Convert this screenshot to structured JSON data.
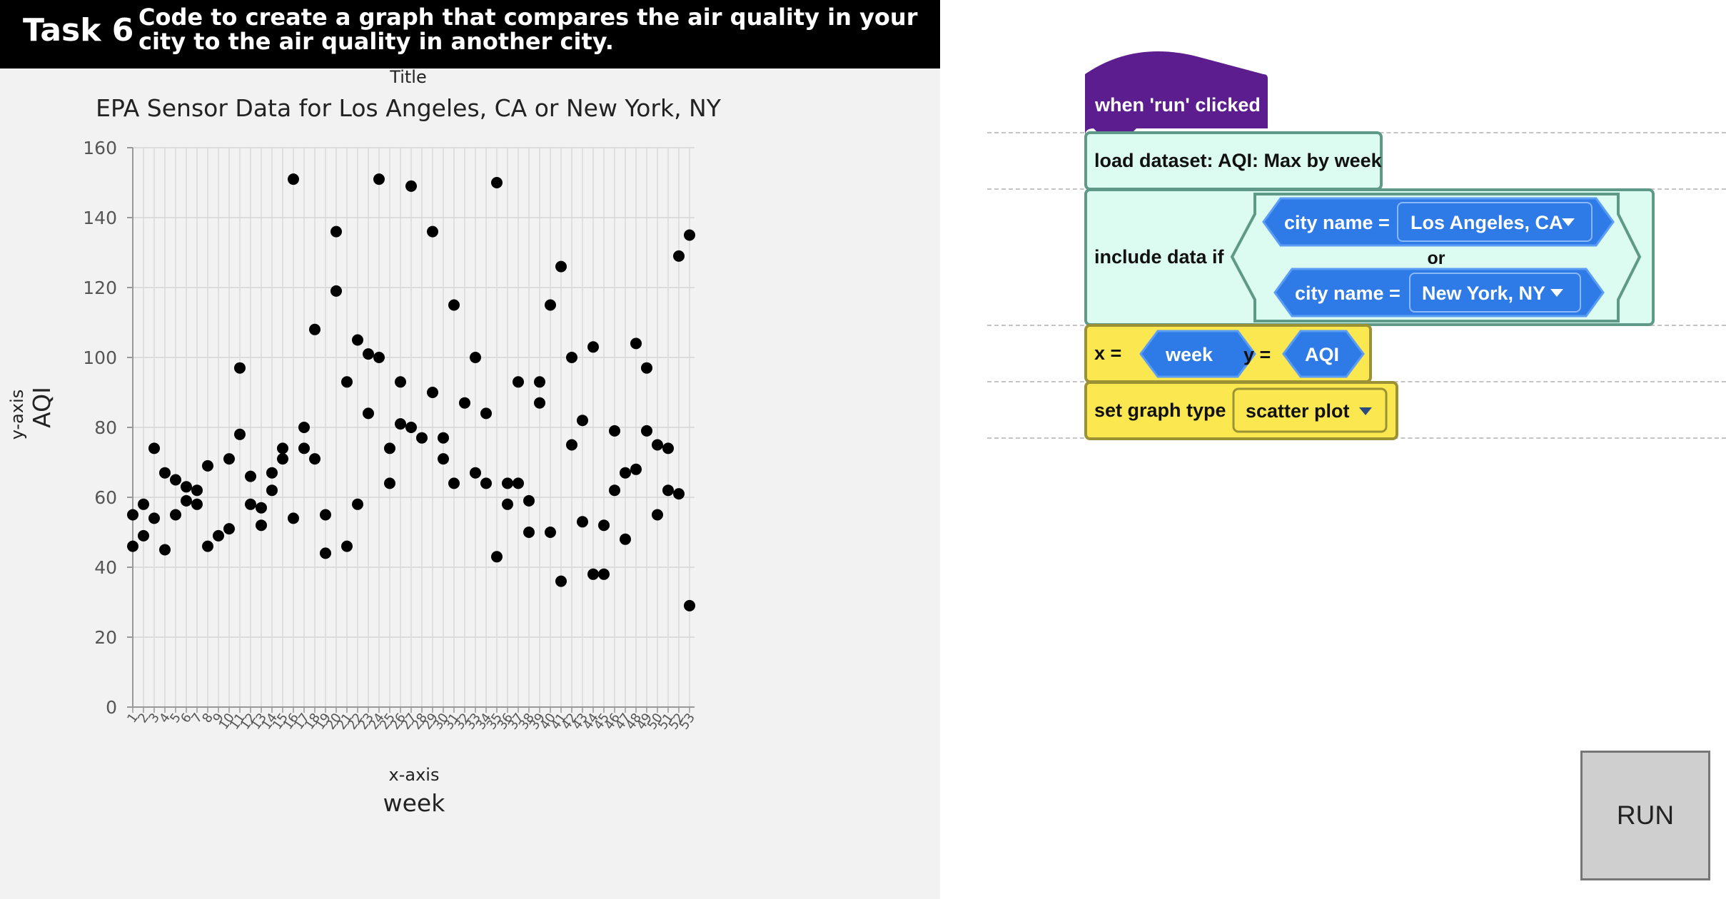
{
  "header": {
    "task_label": "Task 6",
    "description": "Code to create a graph that compares the air quality in your city to the air quality in another city."
  },
  "chart_data": {
    "type": "scatter",
    "title_caption": "Title",
    "title": "EPA Sensor Data for Los Angeles, CA or New York, NY",
    "xaxis_caption": "x-axis",
    "xlabel": "week",
    "yaxis_caption": "y-axis",
    "ylabel": "AQI",
    "ylim": [
      0,
      160
    ],
    "yticks": [
      0,
      20,
      40,
      60,
      80,
      100,
      120,
      140,
      160
    ],
    "xcategories": [
      "1",
      "2",
      "3",
      "4",
      "5",
      "6",
      "7",
      "8",
      "9",
      "10",
      "11",
      "12",
      "13",
      "14",
      "15",
      "16",
      "17",
      "18",
      "19",
      "20",
      "21",
      "22",
      "23",
      "24",
      "25",
      "26",
      "27",
      "28",
      "29",
      "30",
      "31",
      "32",
      "33",
      "34",
      "35",
      "36",
      "37",
      "38",
      "39",
      "40",
      "41",
      "42",
      "43",
      "44",
      "45",
      "46",
      "47",
      "48",
      "49",
      "50",
      "51",
      "52",
      "53"
    ],
    "grid": true,
    "marker_color": "#000000",
    "points": [
      {
        "x": 1,
        "y": 55
      },
      {
        "x": 1,
        "y": 46
      },
      {
        "x": 2,
        "y": 58
      },
      {
        "x": 2,
        "y": 49
      },
      {
        "x": 3,
        "y": 74
      },
      {
        "x": 3,
        "y": 54
      },
      {
        "x": 4,
        "y": 67
      },
      {
        "x": 4,
        "y": 45
      },
      {
        "x": 5,
        "y": 65
      },
      {
        "x": 5,
        "y": 55
      },
      {
        "x": 6,
        "y": 63
      },
      {
        "x": 6,
        "y": 59
      },
      {
        "x": 7,
        "y": 62
      },
      {
        "x": 7,
        "y": 58
      },
      {
        "x": 8,
        "y": 69
      },
      {
        "x": 8,
        "y": 46
      },
      {
        "x": 9,
        "y": 49
      },
      {
        "x": 10,
        "y": 71
      },
      {
        "x": 10,
        "y": 51
      },
      {
        "x": 11,
        "y": 97
      },
      {
        "x": 11,
        "y": 78
      },
      {
        "x": 12,
        "y": 66
      },
      {
        "x": 12,
        "y": 58
      },
      {
        "x": 13,
        "y": 57
      },
      {
        "x": 13,
        "y": 52
      },
      {
        "x": 14,
        "y": 67
      },
      {
        "x": 14,
        "y": 62
      },
      {
        "x": 15,
        "y": 74
      },
      {
        "x": 15,
        "y": 71
      },
      {
        "x": 16,
        "y": 151
      },
      {
        "x": 16,
        "y": 54
      },
      {
        "x": 17,
        "y": 80
      },
      {
        "x": 17,
        "y": 74
      },
      {
        "x": 18,
        "y": 108
      },
      {
        "x": 18,
        "y": 71
      },
      {
        "x": 19,
        "y": 55
      },
      {
        "x": 19,
        "y": 44
      },
      {
        "x": 20,
        "y": 136
      },
      {
        "x": 20,
        "y": 119
      },
      {
        "x": 21,
        "y": 93
      },
      {
        "x": 21,
        "y": 46
      },
      {
        "x": 22,
        "y": 105
      },
      {
        "x": 22,
        "y": 58
      },
      {
        "x": 23,
        "y": 101
      },
      {
        "x": 23,
        "y": 84
      },
      {
        "x": 24,
        "y": 151
      },
      {
        "x": 24,
        "y": 100
      },
      {
        "x": 25,
        "y": 74
      },
      {
        "x": 25,
        "y": 64
      },
      {
        "x": 26,
        "y": 93
      },
      {
        "x": 26,
        "y": 81
      },
      {
        "x": 27,
        "y": 149
      },
      {
        "x": 27,
        "y": 80
      },
      {
        "x": 28,
        "y": 77
      },
      {
        "x": 29,
        "y": 136
      },
      {
        "x": 29,
        "y": 90
      },
      {
        "x": 30,
        "y": 77
      },
      {
        "x": 30,
        "y": 71
      },
      {
        "x": 31,
        "y": 115
      },
      {
        "x": 31,
        "y": 64
      },
      {
        "x": 32,
        "y": 87
      },
      {
        "x": 33,
        "y": 100
      },
      {
        "x": 33,
        "y": 67
      },
      {
        "x": 34,
        "y": 84
      },
      {
        "x": 34,
        "y": 64
      },
      {
        "x": 35,
        "y": 150
      },
      {
        "x": 35,
        "y": 43
      },
      {
        "x": 36,
        "y": 64
      },
      {
        "x": 36,
        "y": 58
      },
      {
        "x": 37,
        "y": 93
      },
      {
        "x": 37,
        "y": 64
      },
      {
        "x": 38,
        "y": 59
      },
      {
        "x": 38,
        "y": 50
      },
      {
        "x": 39,
        "y": 93
      },
      {
        "x": 39,
        "y": 87
      },
      {
        "x": 40,
        "y": 115
      },
      {
        "x": 40,
        "y": 50
      },
      {
        "x": 41,
        "y": 126
      },
      {
        "x": 41,
        "y": 36
      },
      {
        "x": 42,
        "y": 100
      },
      {
        "x": 42,
        "y": 75
      },
      {
        "x": 43,
        "y": 82
      },
      {
        "x": 43,
        "y": 53
      },
      {
        "x": 44,
        "y": 103
      },
      {
        "x": 44,
        "y": 38
      },
      {
        "x": 45,
        "y": 52
      },
      {
        "x": 45,
        "y": 38
      },
      {
        "x": 46,
        "y": 79
      },
      {
        "x": 46,
        "y": 62
      },
      {
        "x": 47,
        "y": 67
      },
      {
        "x": 47,
        "y": 48
      },
      {
        "x": 48,
        "y": 104
      },
      {
        "x": 48,
        "y": 68
      },
      {
        "x": 49,
        "y": 97
      },
      {
        "x": 49,
        "y": 79
      },
      {
        "x": 50,
        "y": 75
      },
      {
        "x": 50,
        "y": 55
      },
      {
        "x": 51,
        "y": 74
      },
      {
        "x": 51,
        "y": 62
      },
      {
        "x": 52,
        "y": 129
      },
      {
        "x": 52,
        "y": 61
      },
      {
        "x": 53,
        "y": 135
      },
      {
        "x": 53,
        "y": 29
      }
    ]
  },
  "code_blocks": {
    "hat": "when 'run' clicked",
    "load": "load dataset: AQI: Max by week",
    "include": "include data if",
    "condition1_field": "city name =",
    "condition1_value": "Los Angeles, CA",
    "or_label": "or",
    "condition2_field": "city name =",
    "condition2_value": "New York, NY",
    "x_label": "x =",
    "x_value": "week",
    "y_label": "y =",
    "y_value": "AQI",
    "graph_type_label": "set graph type",
    "graph_type_value": "scatter plot"
  },
  "colors": {
    "header_bg": "#000000",
    "hat_block": "#5c1e8e",
    "data_block": "#dcfbf1",
    "data_block_border": "#5f9a88",
    "condition_block": "#2e7be8",
    "axis_block": "#fbe851",
    "axis_block_border": "#9b9135"
  },
  "run_button": {
    "label": "RUN"
  }
}
